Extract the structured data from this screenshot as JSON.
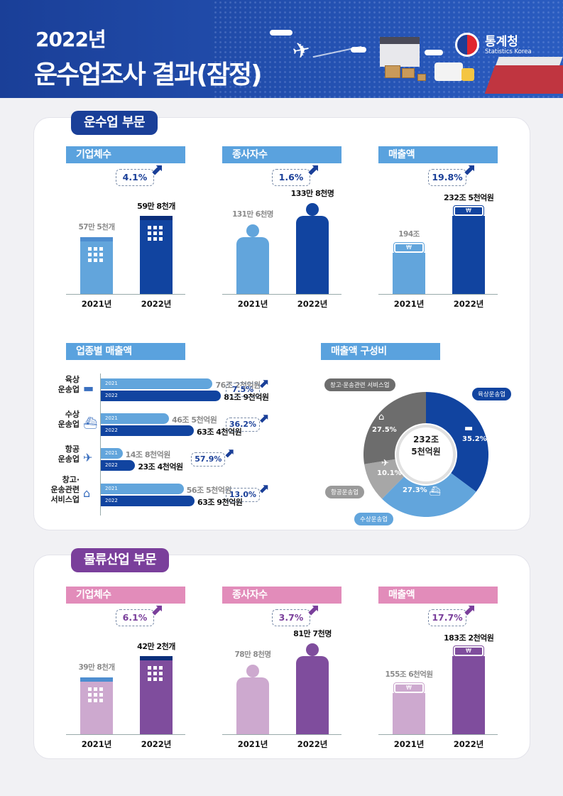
{
  "header": {
    "title_year": "2022년",
    "title_main": "운수업조사 결과(잠정)",
    "logo_ko": "통계청",
    "logo_en": "Statistics Korea"
  },
  "colors": {
    "blue_dark": "#1144a0",
    "blue_light": "#62a5dc",
    "purple_dark": "#7f4d9d",
    "purple_light": "#cda9cf",
    "header_bg": "#1a3f98"
  },
  "transport": {
    "label": "운수업 부문",
    "metrics": [
      {
        "title": "기업체수",
        "rate": "4.1%",
        "v2021": "57만 5천개",
        "v2022": "59만 8천개",
        "y2021": "2021년",
        "y2022": "2022년"
      },
      {
        "title": "종사자수",
        "rate": "1.6%",
        "v2021": "131만 6천명",
        "v2022": "133만 8천명",
        "y2021": "2021년",
        "y2022": "2022년"
      },
      {
        "title": "매출액",
        "rate": "19.8%",
        "v2021": "194조",
        "v2022": "232조 5천억원",
        "y2021": "2021년",
        "y2022": "2022년"
      }
    ],
    "industry_title": "업종별 매출액",
    "industries": [
      {
        "name": "육상\n운송업",
        "v2021": "76조 2천억원",
        "v2022": "81조 9천억원",
        "rate": "7.5%"
      },
      {
        "name": "수상\n운송업",
        "v2021": "46조 5천억원",
        "v2022": "63조 4천억원",
        "rate": "36.2%"
      },
      {
        "name": "항공\n운송업",
        "v2021": "14조 8천억원",
        "v2022": "23조 4천억원",
        "rate": "57.9%"
      },
      {
        "name": "창고·\n운송관련\n서비스업",
        "v2021": "56조 5천억원",
        "v2022": "63조 9천억원",
        "rate": "13.0%"
      }
    ],
    "year_2021": "2021",
    "year_2022": "2022",
    "composition_title": "매출액 구성비",
    "composition_total_1": "232조",
    "composition_total_2": "5천억원",
    "composition": [
      {
        "name": "육상운송업",
        "pct": "35.2%",
        "value": 35.2,
        "color": "#1144a0"
      },
      {
        "name": "수상운송업",
        "pct": "27.3%",
        "value": 27.3,
        "color": "#62a5dc"
      },
      {
        "name": "항공운송업",
        "pct": "10.1%",
        "value": 10.1,
        "color": "#a7a7a7"
      },
      {
        "name": "창고·운송관련 서비스업",
        "pct": "27.5%",
        "value": 27.5,
        "color": "#6d6d6d"
      }
    ]
  },
  "logistics": {
    "label": "물류산업 부문",
    "metrics": [
      {
        "title": "기업체수",
        "rate": "6.1%",
        "v2021": "39만 8천개",
        "v2022": "42만 2천개",
        "y2021": "2021년",
        "y2022": "2022년"
      },
      {
        "title": "종사자수",
        "rate": "3.7%",
        "v2021": "78만 8천명",
        "v2022": "81만 7천명",
        "y2021": "2021년",
        "y2022": "2022년"
      },
      {
        "title": "매출액",
        "rate": "17.7%",
        "v2021": "155조 6천억원",
        "v2022": "183조 2천억원",
        "y2021": "2021년",
        "y2022": "2022년"
      }
    ]
  },
  "chart_data": [
    {
      "type": "bar",
      "categories": [
        "2021년",
        "2022년"
      ],
      "series": [
        {
          "values": [
            57.5,
            59.8
          ]
        }
      ],
      "ylabel": "",
      "title": "기업체수"
    },
    {
      "type": "bar",
      "categories": [
        "2021년",
        "2022년"
      ],
      "series": [
        {
          "values": [
            131.6,
            133.8
          ]
        }
      ],
      "title": "종사자수"
    },
    {
      "type": "bar",
      "categories": [
        "2021년",
        "2022년"
      ],
      "series": [
        {
          "values": [
            194,
            232.5
          ]
        }
      ],
      "title": "매출액"
    },
    {
      "type": "bar",
      "categories": [
        "육상 운송업",
        "수상 운송업",
        "항공 운송업",
        "창고·운송관련 서비스업"
      ],
      "series": [
        {
          "name": "2021",
          "values": [
            76.2,
            46.5,
            14.8,
            56.5
          ]
        },
        {
          "name": "2022",
          "values": [
            81.9,
            63.4,
            23.4,
            63.9
          ]
        }
      ],
      "title": "업종별 매출액"
    },
    {
      "type": "pie",
      "categories": [
        "육상운송업",
        "수상운송업",
        "항공운송업",
        "창고·운송관련 서비스업"
      ],
      "values": [
        35.2,
        27.3,
        10.1,
        27.5
      ],
      "title": "매출액 구성비"
    },
    {
      "type": "bar",
      "categories": [
        "2021년",
        "2022년"
      ],
      "series": [
        {
          "values": [
            39.8,
            42.2
          ]
        }
      ],
      "title": "기업체수"
    },
    {
      "type": "bar",
      "categories": [
        "2021년",
        "2022년"
      ],
      "series": [
        {
          "values": [
            78.8,
            81.7
          ]
        }
      ],
      "title": "종사자수"
    },
    {
      "type": "bar",
      "categories": [
        "2021년",
        "2022년"
      ],
      "series": [
        {
          "values": [
            155.6,
            183.2
          ]
        }
      ],
      "title": "매출액"
    }
  ]
}
